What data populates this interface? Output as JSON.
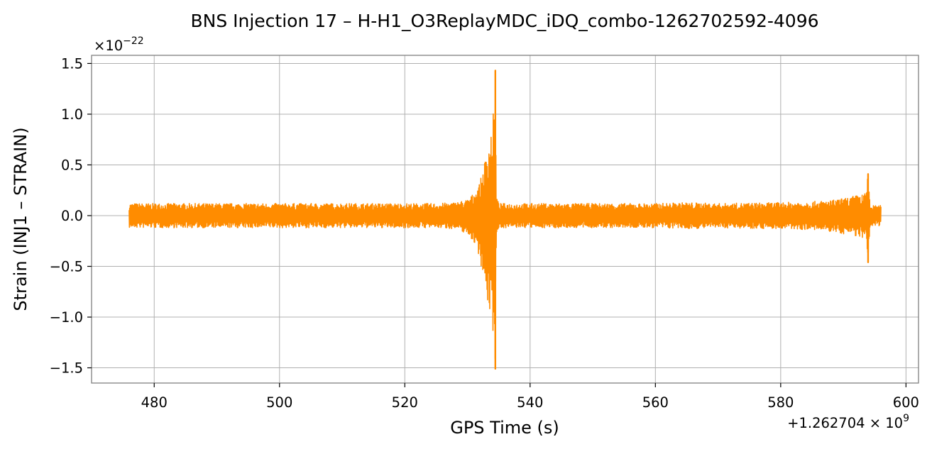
{
  "colors": {
    "series": "#ff8c00",
    "grid": "#b0b0b0",
    "frame": "#808080",
    "background": "#ffffff"
  },
  "chart_data": {
    "type": "line",
    "title": "BNS Injection 17 – H-H1_O3ReplayMDC_iDQ_combo-1262702592-4096",
    "xlabel": "GPS Time (s)",
    "ylabel": "Strain (INJ1 – STRAIN)",
    "x_offset_text": "+1.262704",
    "x_offset_exponent": "9",
    "y_multiplier_text": "×10",
    "y_multiplier_exponent": "−22",
    "xlim": [
      470,
      602
    ],
    "ylim": [
      -1.65,
      1.58
    ],
    "xticks": [
      480,
      500,
      520,
      540,
      560,
      580,
      600
    ],
    "xtick_labels": [
      "480",
      "500",
      "520",
      "540",
      "560",
      "580",
      "600"
    ],
    "yticks": [
      1.5,
      1.0,
      0.5,
      0.0,
      -0.5,
      -1.0,
      -1.5
    ],
    "ytick_labels": [
      "1.5",
      "1.0",
      "0.5",
      "0.0",
      "−0.5",
      "−1.0",
      "−1.5"
    ],
    "grid": true,
    "series": [
      {
        "color": "#ff8c00",
        "x_start": 476.0,
        "x_end": 596.0,
        "envelope": {
          "x": [
            476,
            490,
            500,
            510,
            520,
            525,
            528,
            530,
            531,
            532,
            532.7,
            533.3,
            533.8,
            534.2,
            534.45,
            534.6,
            535,
            540,
            550,
            560,
            565,
            570,
            580,
            585,
            588,
            590,
            592,
            593.5,
            593.95,
            594.1,
            594.3,
            595,
            596
          ],
          "upper": [
            0.12,
            0.12,
            0.12,
            0.12,
            0.12,
            0.12,
            0.13,
            0.16,
            0.22,
            0.33,
            0.52,
            0.72,
            0.88,
            1.05,
            1.43,
            0.2,
            0.12,
            0.12,
            0.12,
            0.12,
            0.13,
            0.12,
            0.13,
            0.14,
            0.15,
            0.17,
            0.2,
            0.22,
            0.41,
            0.3,
            0.1,
            0.1,
            0.1
          ],
          "lower": [
            -0.12,
            -0.12,
            -0.12,
            -0.12,
            -0.12,
            -0.12,
            -0.13,
            -0.18,
            -0.26,
            -0.42,
            -0.7,
            -0.9,
            -1.05,
            -1.2,
            -1.51,
            -0.2,
            -0.12,
            -0.12,
            -0.12,
            -0.12,
            -0.13,
            -0.12,
            -0.13,
            -0.14,
            -0.16,
            -0.18,
            -0.2,
            -0.25,
            -0.46,
            -0.32,
            -0.1,
            -0.1,
            -0.1
          ]
        },
        "peaks": [
          {
            "x": 534.45,
            "y": 1.43
          },
          {
            "x": 534.45,
            "y": -1.51
          },
          {
            "x": 593.95,
            "y": 0.41
          },
          {
            "x": 593.95,
            "y": -0.46
          }
        ]
      }
    ]
  }
}
